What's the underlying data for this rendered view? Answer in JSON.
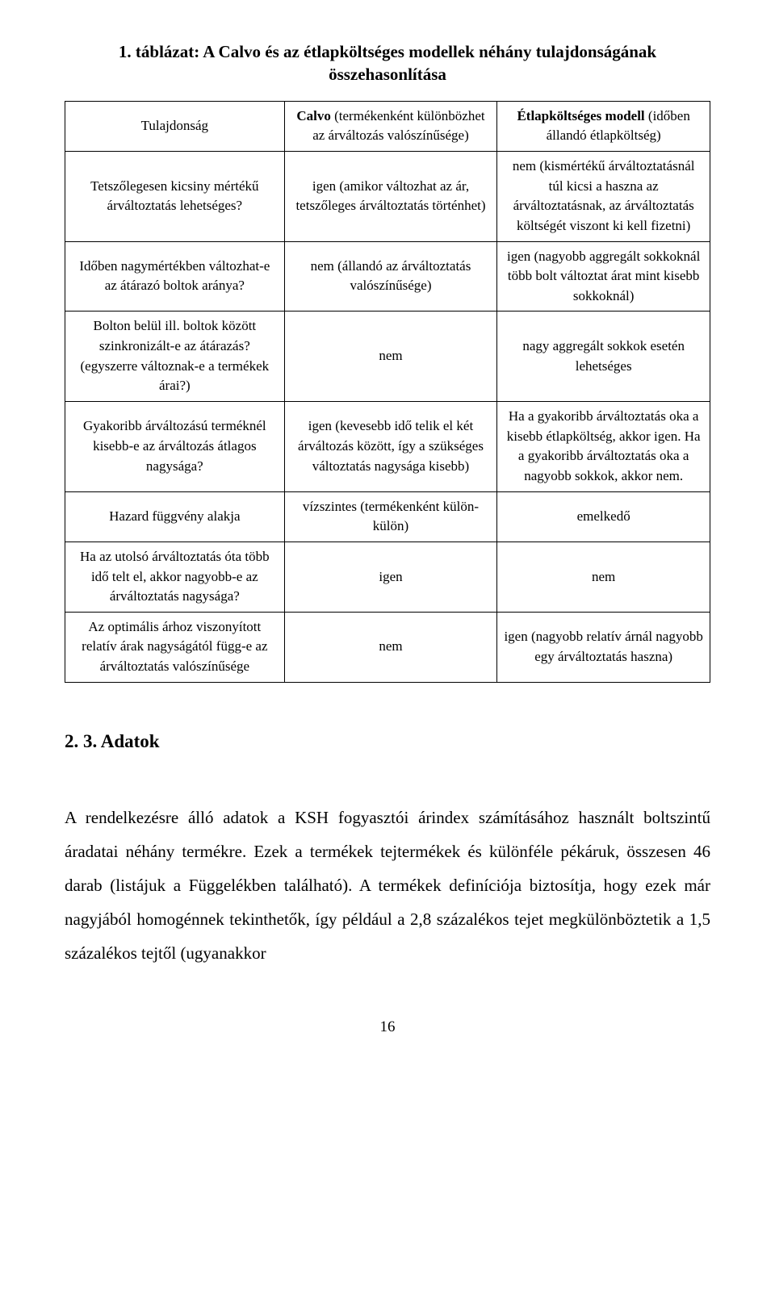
{
  "caption": "1. táblázat: A Calvo és az étlapköltséges modellek néhány tulajdonságának összehasonlítása",
  "headers": {
    "property": "Tulajdonság",
    "calvo_bold": "Calvo",
    "calvo_rest": " (termékenként különbözhet az árváltozás valószínűsége)",
    "menu_bold": "Étlapköltséges modell",
    "menu_rest": " (időben állandó étlapköltség)"
  },
  "rows": [
    {
      "prop": "Tetszőlegesen kicsiny mértékű árváltoztatás lehetséges?",
      "calvo": "igen (amikor változhat az ár, tetszőleges árváltoztatás történhet)",
      "menu": "nem (kismértékű árváltoztatásnál túl kicsi a haszna az árváltoztatásnak, az árváltoztatás költségét viszont ki kell fizetni)"
    },
    {
      "prop": "Időben nagymértékben változhat-e az átárazó boltok aránya?",
      "calvo": "nem (állandó az árváltoztatás valószínűsége)",
      "menu": "igen (nagyobb aggregált sokkoknál több bolt változtat árat mint kisebb sokkoknál)"
    },
    {
      "prop": "Bolton belül ill. boltok között szinkronizált-e az átárazás? (egyszerre változnak-e a termékek árai?)",
      "calvo": "nem",
      "menu": "nagy aggregált sokkok esetén lehetséges"
    },
    {
      "prop": "Gyakoribb árváltozású terméknél kisebb-e az árváltozás átlagos nagysága?",
      "calvo": "igen (kevesebb idő telik el két árváltozás között, így a szükséges változtatás nagysága kisebb)",
      "menu": "Ha a gyakoribb árváltoztatás oka a kisebb étlapköltség, akkor igen. Ha a gyakoribb árváltoztatás oka a nagyobb sokkok, akkor nem."
    },
    {
      "prop": "Hazard függvény alakja",
      "calvo": "vízszintes (termékenként külön-külön)",
      "menu": "emelkedő"
    },
    {
      "prop": "Ha az utolsó árváltoztatás óta több idő telt el, akkor nagyobb-e az árváltoztatás nagysága?",
      "calvo": "igen",
      "menu": "nem"
    },
    {
      "prop": "Az optimális árhoz viszonyított relatív árak nagyságától függ-e az árváltoztatás valószínűsége",
      "calvo": "nem",
      "menu": "igen (nagyobb relatív árnál nagyobb egy árváltoztatás haszna)"
    }
  ],
  "section_heading": "2. 3. Adatok",
  "paragraph": "A rendelkezésre álló adatok a KSH fogyasztói árindex számításához használt boltszintű áradatai néhány termékre. Ezek a termékek tejtermékek és különféle pékáruk, összesen 46 darab (listájuk a Függelékben található). A termékek definíciója biztosítja, hogy ezek már nagyjából homogénnek tekinthetők, így például a 2,8 százalékos tejet megkülönböztetik a 1,5 százalékos tejtől (ugyanakkor",
  "page_number": "16"
}
